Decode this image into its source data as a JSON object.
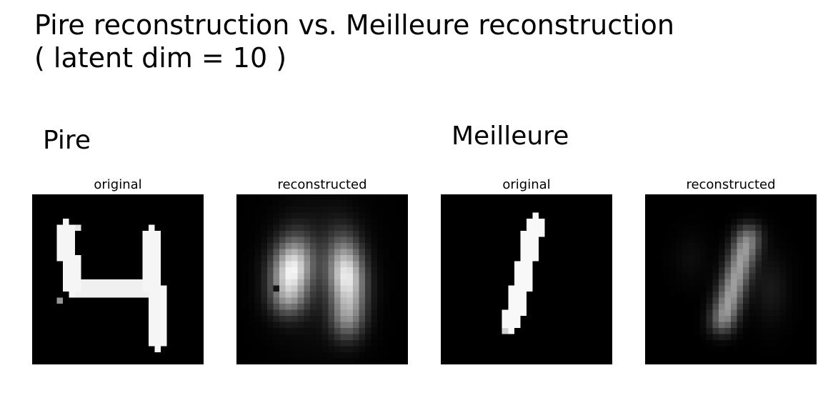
{
  "figure": {
    "title_line_1": "Pire reconstruction vs. Meilleure reconstruction",
    "title_line_2": "( latent dim = 10 )",
    "worst_label": "Pire",
    "best_label": "Meilleure"
  },
  "panels": [
    {
      "title": "original",
      "content": "handwritten digit 4, sharp (worst case original)"
    },
    {
      "title": "reconstructed",
      "content": "blurry two-blob reconstruction (worst case)"
    },
    {
      "title": "original",
      "content": "handwritten digit 1, slanted stroke (best case original)"
    },
    {
      "title": "reconstructed",
      "content": "blurry slanted stroke reconstruction (best case)"
    }
  ],
  "colors": {
    "background": "#ffffff",
    "image_background": "#000000",
    "text": "#000000"
  }
}
